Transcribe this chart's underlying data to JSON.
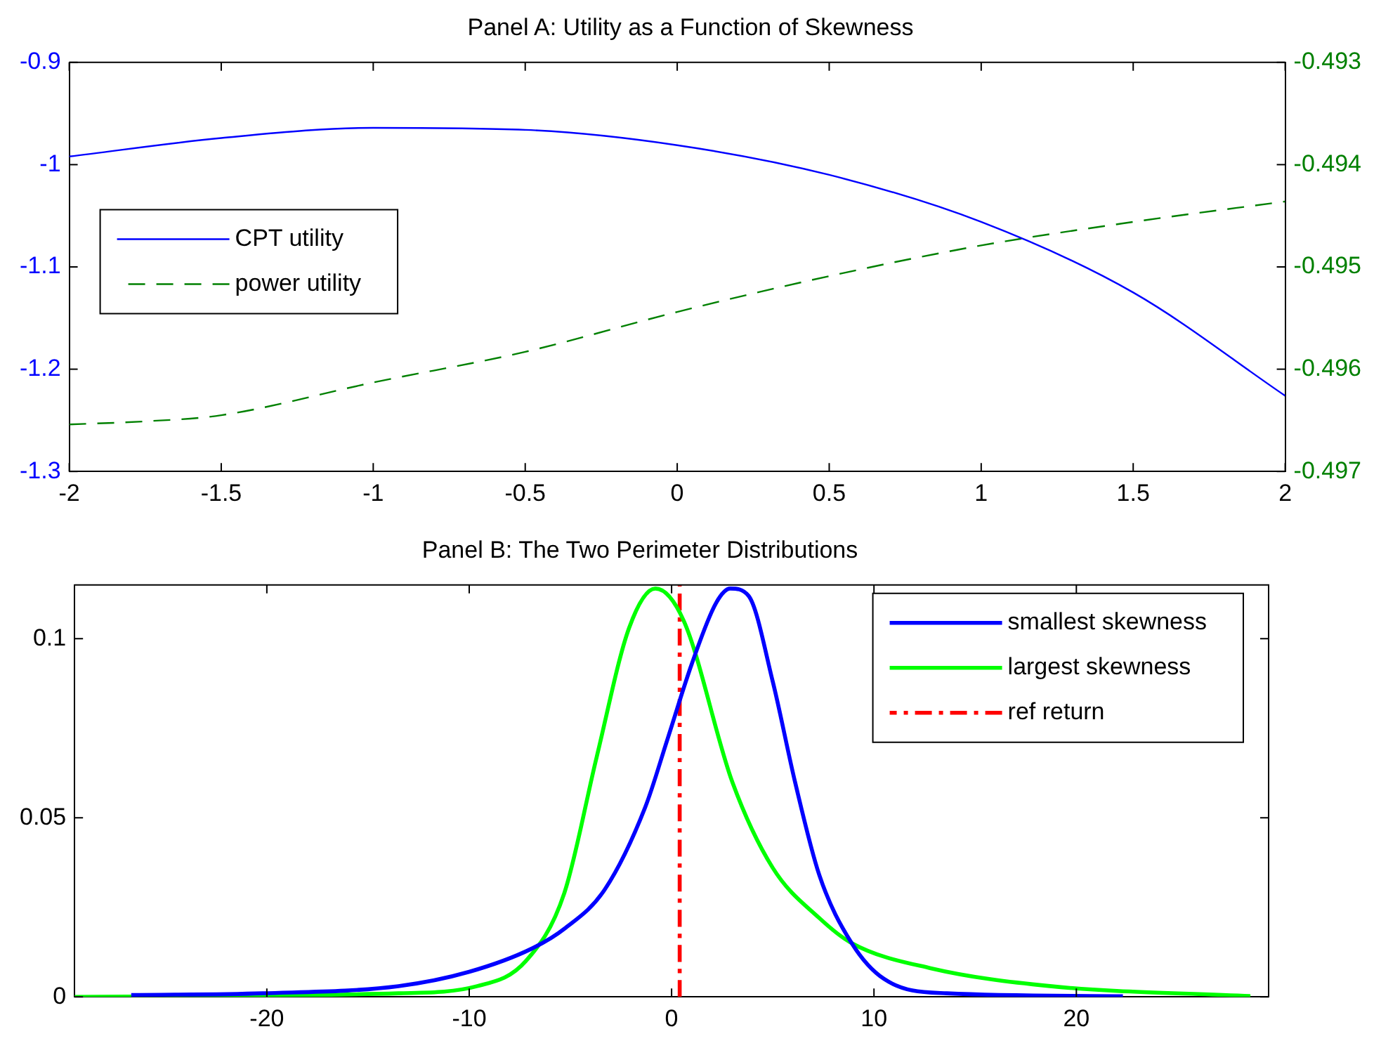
{
  "chart_data": [
    {
      "type": "line",
      "title": "Panel A: Utility as a Function of Skewness",
      "xlim": [
        -2,
        2
      ],
      "xticks": [
        -2,
        -1.5,
        -1,
        -0.5,
        0,
        0.5,
        1,
        1.5,
        2
      ],
      "ylim": [
        -1.3,
        -0.9
      ],
      "yticks": [
        -1.3,
        -1.2,
        -1.1,
        -1,
        -0.9
      ],
      "y2lim": [
        -0.497,
        -0.493
      ],
      "y2ticks": [
        -0.497,
        -0.496,
        -0.495,
        -0.494,
        -0.493
      ],
      "legend": "left",
      "grid": false,
      "series": [
        {
          "name": "CPT utility",
          "color": "#0000ff",
          "line_style": "solid",
          "x": [
            -2,
            -1.5,
            -1,
            -0.5,
            0,
            0.5,
            1,
            1.5,
            2
          ],
          "values": [
            -0.992,
            -0.974,
            -0.964,
            -0.966,
            -0.981,
            -1.01,
            -1.056,
            -1.125,
            -1.226
          ]
        },
        {
          "name": "power utility",
          "color": "#008000",
          "line_style": "dashed",
          "axis": "y2",
          "x": [
            -2,
            -1.75,
            -1.5,
            -1,
            -0.5,
            0,
            0.5,
            1,
            1.5,
            2
          ],
          "values": [
            -0.49654,
            -0.49651,
            -0.49645,
            -0.49613,
            -0.49583,
            -0.49544,
            -0.49509,
            -0.49479,
            -0.49456,
            -0.49436
          ]
        }
      ]
    },
    {
      "type": "line",
      "title": "Panel B: The Two Perimeter Distributions",
      "xlim": [
        -29.5,
        29.5
      ],
      "xticks": [
        -20,
        -10,
        0,
        10,
        20
      ],
      "ylim": [
        0,
        0.115
      ],
      "yticks": [
        0,
        0.05,
        0.1
      ],
      "legend": "top right",
      "grid": false,
      "series": [
        {
          "name": "smallest skewness",
          "color": "#0000ff",
          "line_style": "solid",
          "x": [
            -26.7,
            -20.2,
            -13.5,
            -10,
            -6.9,
            -5.3,
            -3.3,
            -1.3,
            -0.2,
            1,
            2.2,
            2.9,
            3.8,
            5,
            6.1,
            7.3,
            8.9,
            10.5,
            13.6,
            22.3
          ],
          "values": [
            0.0005,
            0.001,
            0.003,
            0.007,
            0.0135,
            0.019,
            0.03,
            0.053,
            0.072,
            0.093,
            0.11,
            0.114,
            0.112,
            0.088,
            0.06,
            0.034,
            0.015,
            0.005,
            0.001,
            0.0002
          ]
        },
        {
          "name": "largest skewness",
          "color": "#00ff00",
          "line_style": "solid",
          "x": [
            -29.5,
            -13.5,
            -9.6,
            -7.2,
            -5.3,
            -3.7,
            -2.1,
            -0.8,
            0.6,
            3,
            5,
            7.3,
            8.9,
            12.8,
            18.7,
            28.6
          ],
          "values": [
            0,
            0.001,
            0.003,
            0.01,
            0.029,
            0.067,
            0.103,
            0.114,
            0.105,
            0.06,
            0.036,
            0.022,
            0.015,
            0.008,
            0.003,
            0.0002
          ]
        },
        {
          "name": "ref return",
          "color": "#ff0000",
          "line_style": "dashdot",
          "x": [
            0.4,
            0.4
          ],
          "values": [
            0,
            0.115
          ]
        }
      ]
    }
  ]
}
